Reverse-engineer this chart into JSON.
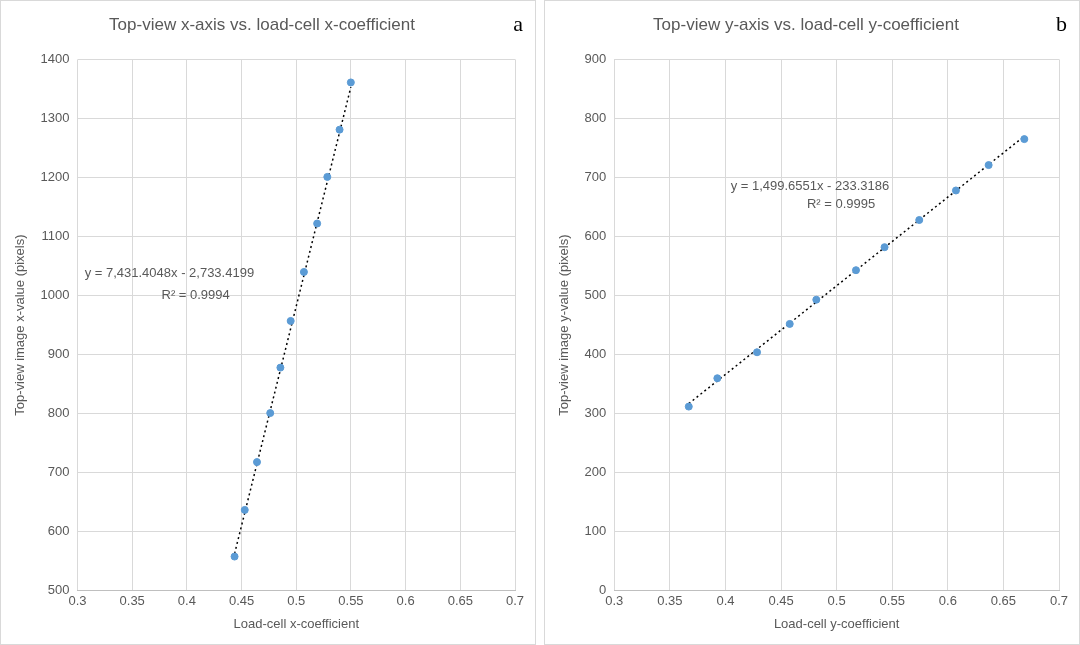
{
  "chart_data": [
    {
      "type": "scatter",
      "title": "Top-view x-axis vs. load-cell x-coefficient",
      "xlabel": "Load-cell x-coefficient",
      "ylabel": "Top-view image x-value (pixels)",
      "xlim": [
        0.3,
        0.7
      ],
      "xticks": [
        0.3,
        0.35,
        0.4,
        0.45,
        0.5,
        0.55,
        0.6,
        0.65,
        0.7
      ],
      "ylim": [
        500,
        1400
      ],
      "yticks": [
        500,
        600,
        700,
        800,
        900,
        1000,
        1100,
        1200,
        1300,
        1400
      ],
      "grid": true,
      "legend": false,
      "annotations": [
        "y = 7,431.4048x - 2,733.4199",
        "R² = 0.9994",
        "a"
      ],
      "series": [
        {
          "color": "#5b9bd5",
          "marker": "circle",
          "x": [
            0.4436,
            0.4529,
            0.4641,
            0.4762,
            0.4855,
            0.4949,
            0.507,
            0.5191,
            0.5284,
            0.5396,
            0.5499
          ],
          "values": [
            558,
            637,
            718,
            801,
            878,
            957,
            1040,
            1122,
            1201,
            1281,
            1361
          ]
        },
        {
          "type": "line",
          "color": "#000000",
          "line_style": "dotted",
          "marker": "none",
          "x": [
            0.4436,
            0.5499
          ],
          "values": [
            563,
            1353
          ]
        }
      ]
    },
    {
      "type": "scatter",
      "title": "Top-view y-axis vs. load-cell y-coefficient",
      "xlabel": "Load-cell y-coefficient",
      "ylabel": "Top-view image y-value (pixels)",
      "xlim": [
        0.3,
        0.7
      ],
      "xticks": [
        0.3,
        0.35,
        0.4,
        0.45,
        0.5,
        0.55,
        0.6,
        0.65,
        0.7
      ],
      "ylim": [
        0,
        900
      ],
      "yticks": [
        0,
        100,
        200,
        300,
        400,
        500,
        600,
        700,
        800,
        900
      ],
      "grid": true,
      "legend": false,
      "annotations": [
        "y = 1,499.6551x - 233.3186",
        "R² = 0.9995",
        "b"
      ],
      "series": [
        {
          "color": "#5b9bd5",
          "marker": "circle",
          "x": [
            0.367,
            0.3927,
            0.4284,
            0.4578,
            0.4817,
            0.5174,
            0.5431,
            0.5743,
            0.6073,
            0.6367,
            0.6688
          ],
          "values": [
            312,
            360,
            404,
            452,
            493,
            543,
            582,
            628,
            678,
            721,
            765
          ]
        },
        {
          "type": "line",
          "color": "#000000",
          "line_style": "dotted",
          "x": [
            0.367,
            0.6688
          ],
          "values": [
            317,
            770
          ]
        }
      ]
    }
  ]
}
